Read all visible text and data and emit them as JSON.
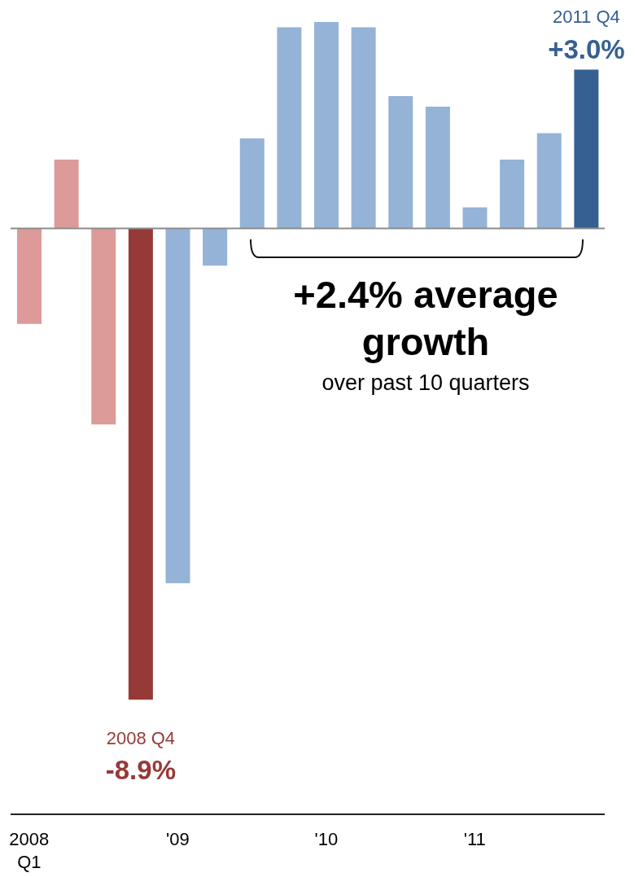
{
  "chart_data": {
    "type": "bar",
    "categories": [
      "2008\nQ1",
      null,
      null,
      null,
      "'09",
      null,
      null,
      null,
      "'10",
      null,
      null,
      null,
      "'11",
      null,
      null,
      null
    ],
    "values": [
      -1.8,
      1.3,
      -3.7,
      -8.9,
      -6.7,
      -0.7,
      1.7,
      3.8,
      3.9,
      3.8,
      2.5,
      2.3,
      0.4,
      1.3,
      1.8,
      3.0
    ],
    "colors": [
      "#dc9a98",
      "#dc9a98",
      "#dc9a98",
      "#963a37",
      "#95b3d7",
      "#95b3d7",
      "#95b3d7",
      "#95b3d7",
      "#95b3d7",
      "#95b3d7",
      "#95b3d7",
      "#95b3d7",
      "#95b3d7",
      "#95b3d7",
      "#95b3d7",
      "#366092"
    ],
    "value_labels": [
      null,
      null,
      null,
      "-8.9%",
      null,
      null,
      null,
      null,
      null,
      null,
      null,
      null,
      null,
      null,
      null,
      "+3.0%"
    ],
    "ref_lines": [
      {
        "axis": "y",
        "value": 0,
        "color": "#8c8c8c"
      }
    ],
    "annotations": [
      {
        "text": "2008 Q4",
        "y": -8.9
      },
      {
        "text": "2011 Q4",
        "y": 3.0
      },
      "+2.4% average growth",
      "over past 10 quarters"
    ],
    "data_labels": false
  }
}
